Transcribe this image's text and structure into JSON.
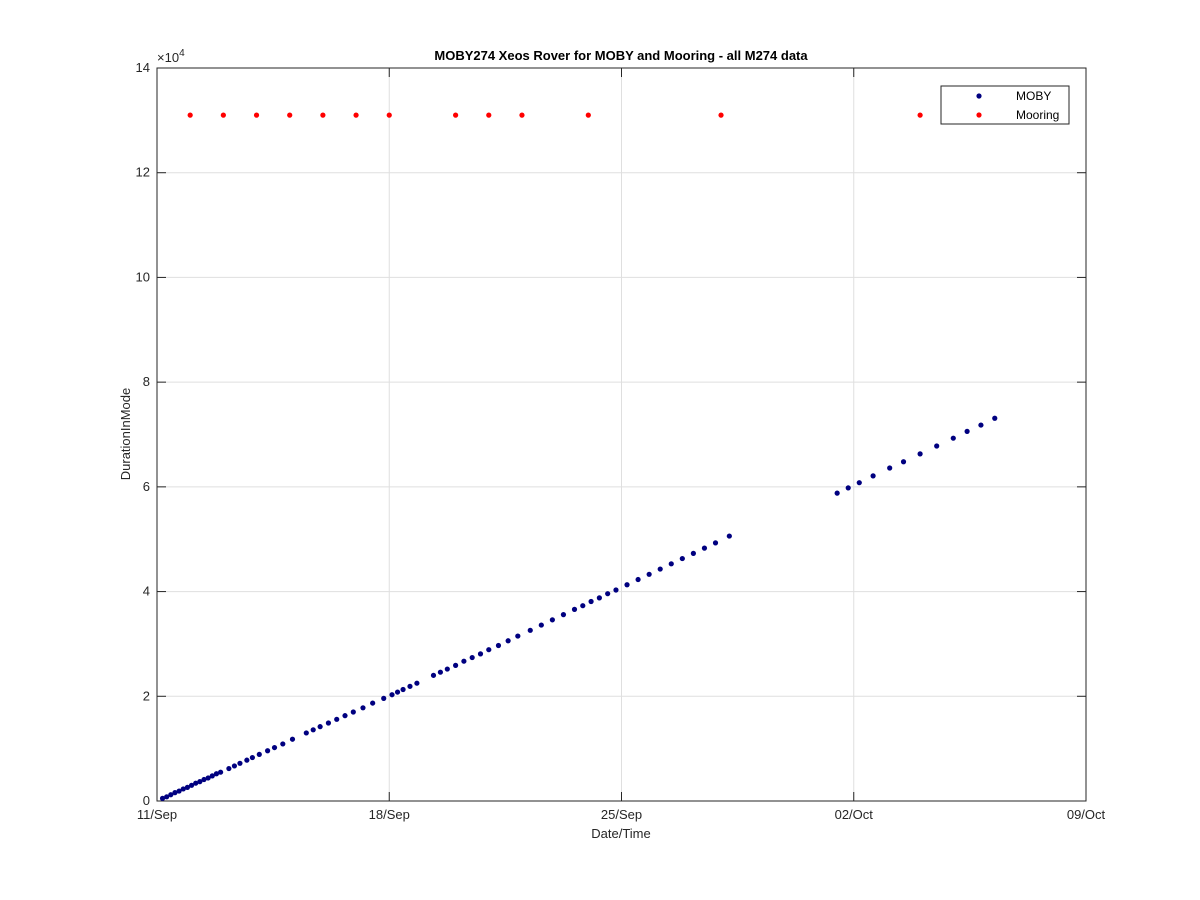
{
  "chart_data": {
    "type": "scatter",
    "title": "MOBY274 Xeos Rover for MOBY and Mooring - all M274 data",
    "xlabel": "Date/Time",
    "ylabel": "DurationInMode",
    "x_unit": "days",
    "xlim": [
      "2016-09-11",
      "2016-10-09"
    ],
    "x_ticks": [
      {
        "x": "2016-09-11",
        "label": "11/Sep"
      },
      {
        "x": "2016-09-18",
        "label": "18/Sep"
      },
      {
        "x": "2016-09-25",
        "label": "25/Sep"
      },
      {
        "x": "2016-10-02",
        "label": "02/Oct"
      },
      {
        "x": "2016-10-09",
        "label": "09/Oct"
      }
    ],
    "ylim": [
      0,
      14
    ],
    "y_ticks": [
      0,
      2,
      4,
      6,
      8,
      10,
      12,
      14
    ],
    "y_exponent_label": "×10",
    "y_exponent_power": "4",
    "grid": true,
    "legend_position": "top-right",
    "series": [
      {
        "name": "MOBY",
        "color": "#000080",
        "points": [
          {
            "x": "2016-09-11T04:00",
            "y": 0.05
          },
          {
            "x": "2016-09-11T07:00",
            "y": 0.08
          },
          {
            "x": "2016-09-11T10:00",
            "y": 0.12
          },
          {
            "x": "2016-09-11T13:00",
            "y": 0.16
          },
          {
            "x": "2016-09-11T16:00",
            "y": 0.19
          },
          {
            "x": "2016-09-11T19:00",
            "y": 0.23
          },
          {
            "x": "2016-09-11T22:00",
            "y": 0.26
          },
          {
            "x": "2016-09-12T01:00",
            "y": 0.3
          },
          {
            "x": "2016-09-12T04:00",
            "y": 0.34
          },
          {
            "x": "2016-09-12T07:00",
            "y": 0.37
          },
          {
            "x": "2016-09-12T10:00",
            "y": 0.41
          },
          {
            "x": "2016-09-12T13:00",
            "y": 0.44
          },
          {
            "x": "2016-09-12T16:00",
            "y": 0.48
          },
          {
            "x": "2016-09-12T19:00",
            "y": 0.52
          },
          {
            "x": "2016-09-12T22:00",
            "y": 0.55
          },
          {
            "x": "2016-09-13T04:00",
            "y": 0.62
          },
          {
            "x": "2016-09-13T08:00",
            "y": 0.67
          },
          {
            "x": "2016-09-13T12:00",
            "y": 0.72
          },
          {
            "x": "2016-09-13T17:00",
            "y": 0.78
          },
          {
            "x": "2016-09-13T21:00",
            "y": 0.83
          },
          {
            "x": "2016-09-14T02:00",
            "y": 0.89
          },
          {
            "x": "2016-09-14T08:00",
            "y": 0.96
          },
          {
            "x": "2016-09-14T13:00",
            "y": 1.02
          },
          {
            "x": "2016-09-14T19:00",
            "y": 1.09
          },
          {
            "x": "2016-09-15T02:00",
            "y": 1.18
          },
          {
            "x": "2016-09-15T12:00",
            "y": 1.3
          },
          {
            "x": "2016-09-15T17:00",
            "y": 1.36
          },
          {
            "x": "2016-09-15T22:00",
            "y": 1.42
          },
          {
            "x": "2016-09-16T04:00",
            "y": 1.49
          },
          {
            "x": "2016-09-16T10:00",
            "y": 1.56
          },
          {
            "x": "2016-09-16T16:00",
            "y": 1.63
          },
          {
            "x": "2016-09-16T22:00",
            "y": 1.7
          },
          {
            "x": "2016-09-17T05:00",
            "y": 1.78
          },
          {
            "x": "2016-09-17T12:00",
            "y": 1.87
          },
          {
            "x": "2016-09-17T20:00",
            "y": 1.96
          },
          {
            "x": "2016-09-18T02:00",
            "y": 2.03
          },
          {
            "x": "2016-09-18T06:00",
            "y": 2.08
          },
          {
            "x": "2016-09-18T10:00",
            "y": 2.13
          },
          {
            "x": "2016-09-18T15:00",
            "y": 2.19
          },
          {
            "x": "2016-09-18T20:00",
            "y": 2.25
          },
          {
            "x": "2016-09-19T08:00",
            "y": 2.4
          },
          {
            "x": "2016-09-19T13:00",
            "y": 2.46
          },
          {
            "x": "2016-09-19T18:00",
            "y": 2.52
          },
          {
            "x": "2016-09-20T00:00",
            "y": 2.59
          },
          {
            "x": "2016-09-20T06:00",
            "y": 2.67
          },
          {
            "x": "2016-09-20T12:00",
            "y": 2.74
          },
          {
            "x": "2016-09-20T18:00",
            "y": 2.81
          },
          {
            "x": "2016-09-21T00:00",
            "y": 2.89
          },
          {
            "x": "2016-09-21T07:00",
            "y": 2.97
          },
          {
            "x": "2016-09-21T14:00",
            "y": 3.06
          },
          {
            "x": "2016-09-21T21:00",
            "y": 3.15
          },
          {
            "x": "2016-09-22T06:00",
            "y": 3.26
          },
          {
            "x": "2016-09-22T14:00",
            "y": 3.36
          },
          {
            "x": "2016-09-22T22:00",
            "y": 3.46
          },
          {
            "x": "2016-09-23T06:00",
            "y": 3.56
          },
          {
            "x": "2016-09-23T14:00",
            "y": 3.66
          },
          {
            "x": "2016-09-23T20:00",
            "y": 3.73
          },
          {
            "x": "2016-09-24T02:00",
            "y": 3.81
          },
          {
            "x": "2016-09-24T08:00",
            "y": 3.88
          },
          {
            "x": "2016-09-24T14:00",
            "y": 3.96
          },
          {
            "x": "2016-09-24T20:00",
            "y": 4.03
          },
          {
            "x": "2016-09-25T04:00",
            "y": 4.13
          },
          {
            "x": "2016-09-25T12:00",
            "y": 4.23
          },
          {
            "x": "2016-09-25T20:00",
            "y": 4.33
          },
          {
            "x": "2016-09-26T04:00",
            "y": 4.43
          },
          {
            "x": "2016-09-26T12:00",
            "y": 4.53
          },
          {
            "x": "2016-09-26T20:00",
            "y": 4.63
          },
          {
            "x": "2016-09-27T04:00",
            "y": 4.73
          },
          {
            "x": "2016-09-27T12:00",
            "y": 4.83
          },
          {
            "x": "2016-09-27T20:00",
            "y": 4.93
          },
          {
            "x": "2016-09-28T06:00",
            "y": 5.06
          },
          {
            "x": "2016-10-01T12:00",
            "y": 5.88
          },
          {
            "x": "2016-10-01T20:00",
            "y": 5.98
          },
          {
            "x": "2016-10-02T04:00",
            "y": 6.08
          },
          {
            "x": "2016-10-02T14:00",
            "y": 6.21
          },
          {
            "x": "2016-10-03T02:00",
            "y": 6.36
          },
          {
            "x": "2016-10-03T12:00",
            "y": 6.48
          },
          {
            "x": "2016-10-04T00:00",
            "y": 6.63
          },
          {
            "x": "2016-10-04T12:00",
            "y": 6.78
          },
          {
            "x": "2016-10-05T00:00",
            "y": 6.93
          },
          {
            "x": "2016-10-05T10:00",
            "y": 7.06
          },
          {
            "x": "2016-10-05T20:00",
            "y": 7.18
          },
          {
            "x": "2016-10-06T06:00",
            "y": 7.31
          }
        ]
      },
      {
        "name": "Mooring",
        "color": "#ff0000",
        "points": [
          {
            "x": "2016-09-12",
            "y": 13.1
          },
          {
            "x": "2016-09-13",
            "y": 13.1
          },
          {
            "x": "2016-09-14",
            "y": 13.1
          },
          {
            "x": "2016-09-15",
            "y": 13.1
          },
          {
            "x": "2016-09-16",
            "y": 13.1
          },
          {
            "x": "2016-09-17",
            "y": 13.1
          },
          {
            "x": "2016-09-18",
            "y": 13.1
          },
          {
            "x": "2016-09-20",
            "y": 13.1
          },
          {
            "x": "2016-09-21",
            "y": 13.1
          },
          {
            "x": "2016-09-22",
            "y": 13.1
          },
          {
            "x": "2016-09-24",
            "y": 13.1
          },
          {
            "x": "2016-09-28",
            "y": 13.1
          },
          {
            "x": "2016-10-04",
            "y": 13.1
          }
        ]
      }
    ]
  }
}
